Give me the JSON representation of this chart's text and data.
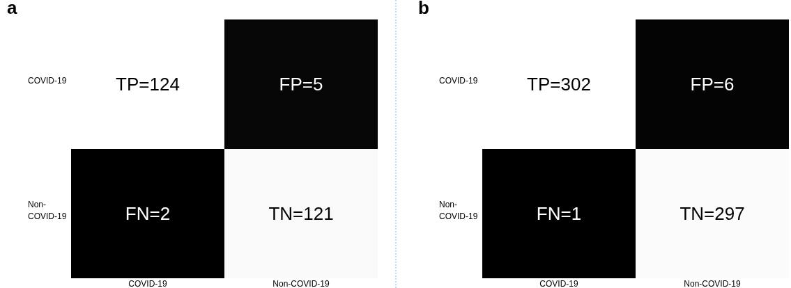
{
  "chart_data": [
    {
      "type": "heatmap",
      "title": "a",
      "categories": [
        "COVID-19",
        "Non-COVID-19"
      ],
      "y_categories": [
        "COVID-19",
        "Non-COVID-19"
      ],
      "cells": [
        [
          124,
          5
        ],
        [
          2,
          121
        ]
      ],
      "cell_labels": [
        [
          "TP=124",
          "FP=5"
        ],
        [
          "FN=2",
          "TN=121"
        ]
      ]
    },
    {
      "type": "heatmap",
      "title": "b",
      "categories": [
        "COVID-19",
        "Non-COVID-19"
      ],
      "y_categories": [
        "COVID-19",
        "Non-COVID-19"
      ],
      "cells": [
        [
          302,
          6
        ],
        [
          1,
          297
        ]
      ],
      "cell_labels": [
        [
          "TP=302",
          "FP=6"
        ],
        [
          "FN=1",
          "TN=297"
        ]
      ]
    }
  ]
}
